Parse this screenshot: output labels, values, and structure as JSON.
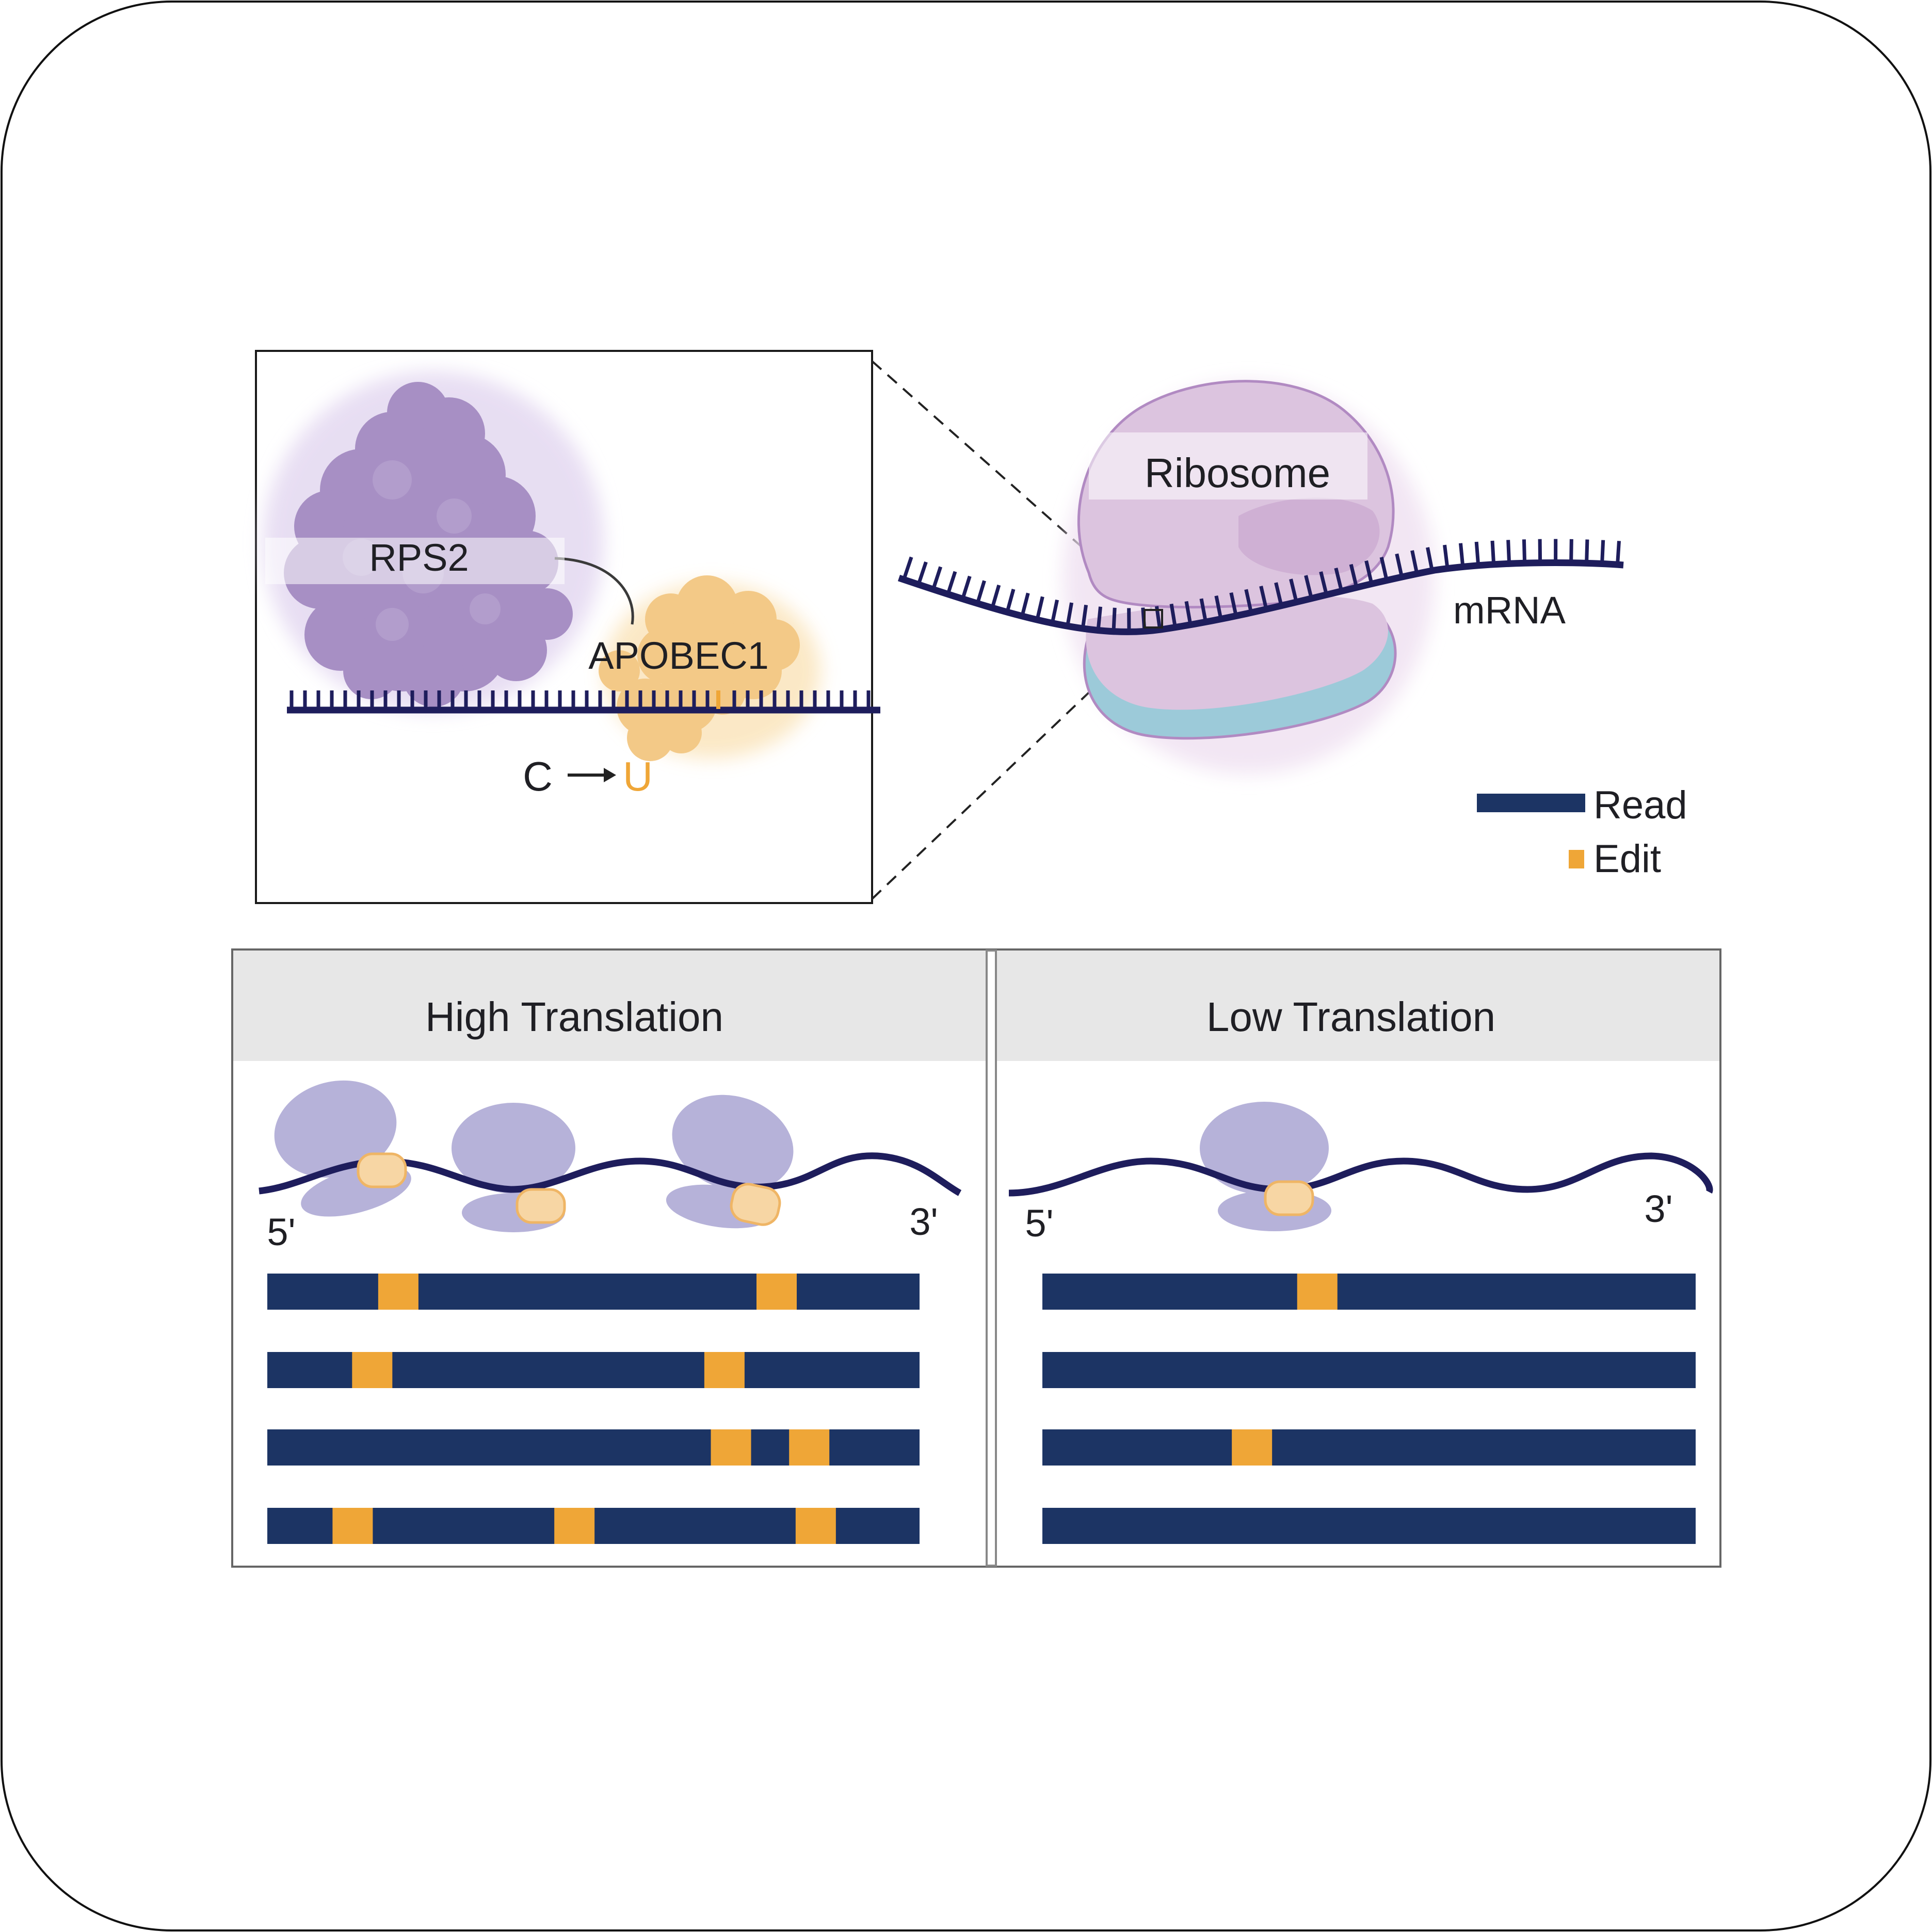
{
  "inset": {
    "protein_label": "RPS2",
    "enzyme_label": "APOBEC1",
    "edit_from": "C",
    "edit_to": "U"
  },
  "overview": {
    "ribosome_label": "Ribosome",
    "mrna_label": "mRNA"
  },
  "legend": [
    {
      "label": "Read",
      "color": "#1c3464"
    },
    {
      "label": "Edit",
      "color": "#efa637"
    }
  ],
  "panels": [
    {
      "title": "High Translation",
      "five_prime": "5'",
      "three_prime": "3'",
      "ribosome_count": 3,
      "reads": [
        {
          "edits": [
            0.17,
            0.75
          ]
        },
        {
          "edits": [
            0.13,
            0.67
          ]
        },
        {
          "edits": [
            0.68,
            0.8
          ]
        },
        {
          "edits": [
            0.1,
            0.44,
            0.81
          ]
        }
      ]
    },
    {
      "title": "Low Translation",
      "five_prime": "5'",
      "three_prime": "3'",
      "ribosome_count": 1,
      "reads": [
        {
          "edits": [
            0.39
          ]
        },
        {
          "edits": []
        },
        {
          "edits": [
            0.29
          ]
        },
        {
          "edits": []
        }
      ]
    }
  ],
  "colors": {
    "mrna": "#1e1d5c",
    "read": "#1c3464",
    "edit": "#efa637",
    "rps2": "#a78fc4",
    "ribosome": "#d8bfdc",
    "ribosome_outline": "#b18ac2",
    "ribosome_base": "#9ccad9",
    "ribosome_simple": "#b6b2d9",
    "apobec": "#f3c987",
    "header_bg": "#e7e7e7"
  }
}
